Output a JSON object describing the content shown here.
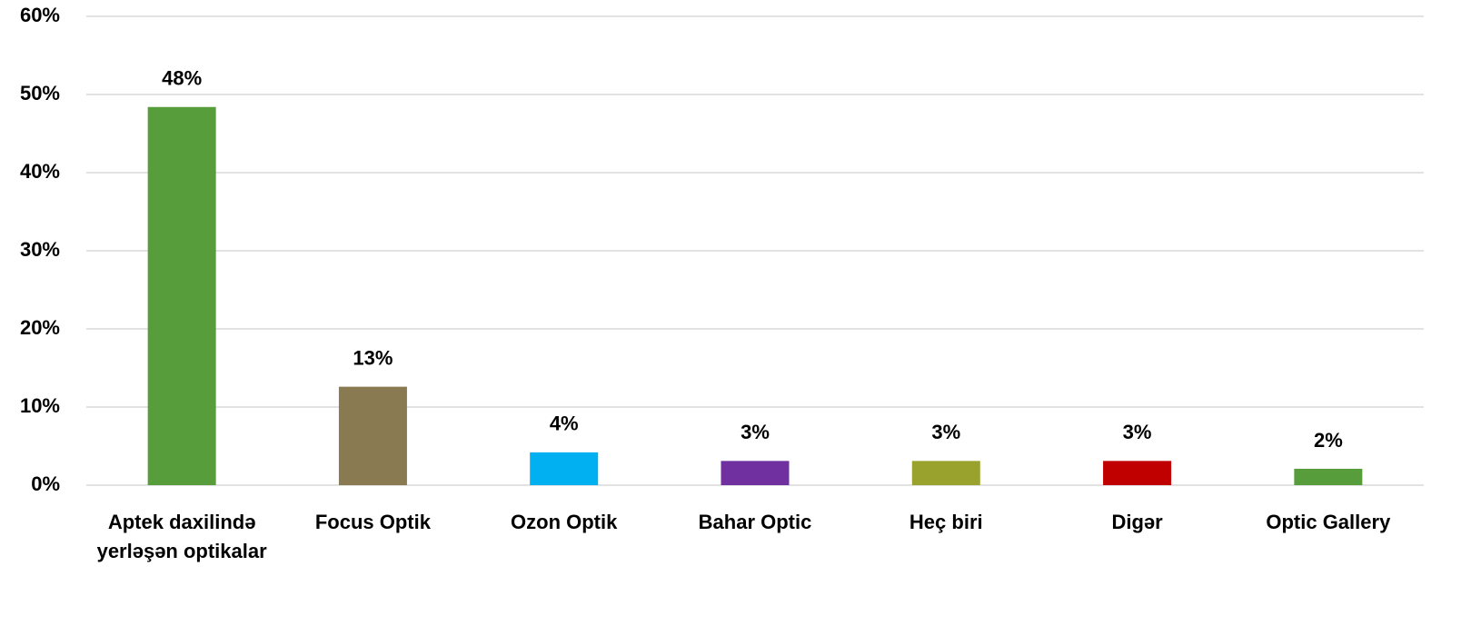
{
  "chart_data": {
    "type": "bar",
    "categories": [
      "Aptek daxilində yerləşən optikalar",
      "Focus Optik",
      "Ozon Optik",
      "Bahar Optic",
      "Heç biri",
      "Digər",
      "Optic Gallery"
    ],
    "values": [
      48.4,
      12.6,
      4.2,
      3.1,
      3.1,
      3.1,
      2.1
    ],
    "value_labels": [
      "48%",
      "13%",
      "4%",
      "3%",
      "3%",
      "3%",
      "2%"
    ],
    "colors": [
      "#589d3b",
      "#8a7a52",
      "#00b0f0",
      "#7030a0",
      "#99a22d",
      "#c00000",
      "#589d3b"
    ],
    "ylim": [
      0,
      60
    ],
    "yticks": [
      {
        "value": 0,
        "label": "0%"
      },
      {
        "value": 10,
        "label": "10%"
      },
      {
        "value": 20,
        "label": "20%"
      },
      {
        "value": 30,
        "label": "30%"
      },
      {
        "value": 40,
        "label": "40%"
      },
      {
        "value": 50,
        "label": "50%"
      },
      {
        "value": 60,
        "label": "60%"
      }
    ],
    "grid": true
  }
}
